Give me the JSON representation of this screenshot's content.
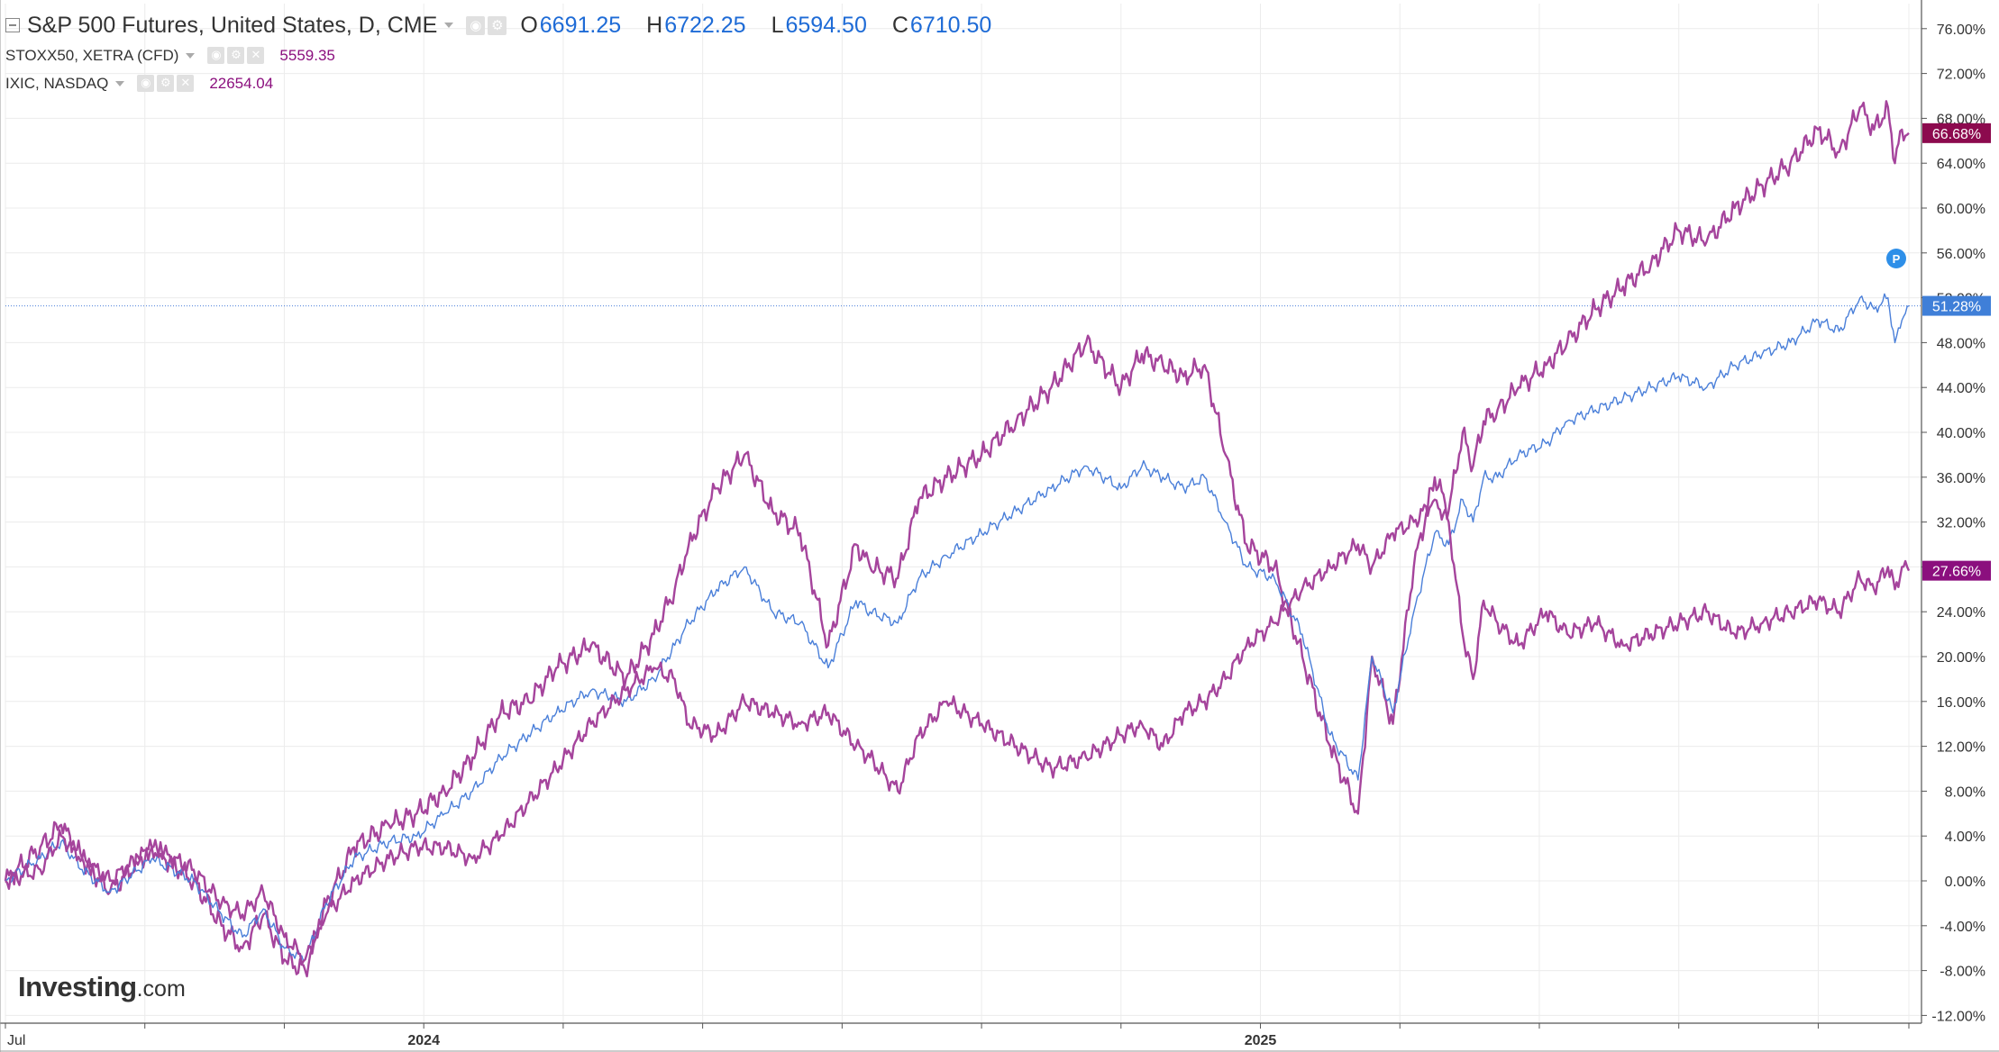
{
  "colors": {
    "background": "#ffffff",
    "grid": "#ececec",
    "axis": "#555555",
    "axis_text": "#333333",
    "blue": "#1e6bd6",
    "sp500_line": "#4a7fd9",
    "stoxx_line": "#a5449c",
    "ixic_line": "#a5449c",
    "ixic_label_bg": "#8c0a4e",
    "stoxx_label_bg": "#8b0f7e",
    "sp500_label_bg": "#3f7fd8",
    "p_marker": "#2e8fe8"
  },
  "legend": {
    "main": {
      "title": "S&P 500 Futures, United States, D, CME",
      "open_label": "O",
      "open": "6691.25",
      "high_label": "H",
      "high": "6722.25",
      "low_label": "L",
      "low": "6594.50",
      "close_label": "C",
      "close": "6710.50"
    },
    "series": [
      {
        "title": "STOXX50, XETRA (CFD)",
        "value": "5559.35",
        "value_color": "#8b0f7e"
      },
      {
        "title": "IXIC, NASDAQ",
        "value": "22654.04",
        "value_color": "#8b0f7e"
      }
    ]
  },
  "icons": {
    "collapse": "collapse-box-icon",
    "caret": "caret-down-icon",
    "visibility": "eye-icon",
    "settings": "gear-icon",
    "remove": "close-icon"
  },
  "logo": {
    "bold": "Investing",
    "suffix": ".com"
  },
  "marker": {
    "label": "P"
  },
  "chart_data": {
    "type": "line",
    "y_unit": "%",
    "ylim": [
      -12,
      78
    ],
    "y_ticks": [
      "76.00%",
      "72.00%",
      "68.00%",
      "64.00%",
      "60.00%",
      "56.00%",
      "52.00%",
      "48.00%",
      "44.00%",
      "40.00%",
      "36.00%",
      "32.00%",
      "28.00%",
      "24.00%",
      "20.00%",
      "16.00%",
      "12.00%",
      "8.00%",
      "4.00%",
      "0.00%",
      "-4.00%",
      "-8.00%",
      "-12.00%"
    ],
    "xlim": [
      0,
      27.3
    ],
    "x_tick_labels": [
      {
        "x": 0,
        "label": "Jul"
      },
      {
        "x": 6,
        "label": "2024"
      },
      {
        "x": 18,
        "label": "2025"
      }
    ],
    "x_minor_ticks": [
      2,
      4,
      8,
      10,
      12,
      14,
      16,
      20,
      22,
      24,
      26,
      27.3
    ],
    "grid": true,
    "price_line": 51.28,
    "last_value_labels": [
      {
        "series": "IXIC, NASDAQ",
        "label": "66.68%",
        "value": 66.68
      },
      {
        "series": "S&P 500 Futures",
        "label": "51.28%",
        "value": 51.28
      },
      {
        "series": "STOXX50, XETRA (CFD)",
        "label": "27.66%",
        "value": 27.66
      }
    ],
    "series": [
      {
        "name": "IXIC, NASDAQ",
        "x": [
          0,
          0.5,
          0.8,
          1.1,
          1.5,
          2.1,
          2.7,
          3.1,
          3.4,
          3.7,
          4.0,
          4.3,
          4.6,
          5.0,
          5.5,
          5.9,
          6.3,
          6.7,
          7.1,
          7.5,
          7.9,
          8.4,
          8.9,
          9.3,
          9.6,
          9.8,
          10.2,
          10.6,
          11.0,
          11.4,
          11.8,
          12.2,
          12.4,
          12.8,
          13.1,
          13.5,
          14.0,
          14.5,
          15.0,
          15.5,
          16.0,
          16.3,
          16.6,
          16.9,
          17.2,
          17.5,
          17.8,
          18.2,
          18.6,
          19.0,
          19.4,
          19.6,
          19.9,
          20.2,
          20.5,
          20.7,
          20.9,
          21.05,
          21.2,
          21.4,
          21.7,
          22.1,
          22.4,
          22.8,
          23.2,
          23.6,
          24.0,
          24.4,
          24.8,
          25.2,
          25.6,
          26.0,
          26.3,
          26.6,
          26.8,
          27.0,
          27.1,
          27.2,
          27.3
        ],
        "values": [
          0,
          3,
          5,
          2,
          -1,
          3,
          0,
          -4,
          -6,
          -3,
          -7,
          -8,
          -2,
          3,
          5,
          6,
          8,
          11,
          15,
          16,
          19,
          21,
          18,
          22,
          26,
          30,
          35,
          38,
          33,
          31,
          21,
          30,
          28,
          27,
          34,
          36,
          38,
          41,
          44,
          48,
          44,
          47,
          46,
          45,
          46,
          38,
          30,
          28,
          20,
          12,
          6,
          20,
          14,
          28,
          36,
          33,
          40,
          37,
          41,
          42,
          44,
          46,
          48,
          51,
          53,
          55,
          58,
          57,
          60,
          62,
          64,
          67,
          65,
          69,
          67,
          69,
          64,
          67,
          66.68
        ]
      },
      {
        "name": "S&P 500 Futures",
        "x": [
          0,
          0.5,
          0.8,
          1.1,
          1.5,
          2.1,
          2.7,
          3.1,
          3.4,
          3.7,
          4.0,
          4.3,
          4.6,
          5.0,
          5.5,
          5.9,
          6.3,
          6.7,
          7.1,
          7.5,
          7.9,
          8.4,
          8.9,
          9.3,
          9.6,
          9.8,
          10.2,
          10.6,
          11.0,
          11.4,
          11.8,
          12.2,
          12.4,
          12.8,
          13.1,
          13.5,
          14.0,
          14.5,
          15.0,
          15.5,
          16.0,
          16.3,
          16.6,
          16.9,
          17.2,
          17.5,
          17.8,
          18.2,
          18.6,
          19.0,
          19.4,
          19.6,
          19.9,
          20.2,
          20.5,
          20.7,
          20.9,
          21.05,
          21.2,
          21.4,
          21.7,
          22.1,
          22.4,
          22.8,
          23.2,
          23.6,
          24.0,
          24.4,
          24.8,
          25.2,
          25.6,
          26.0,
          26.3,
          26.6,
          26.8,
          27.0,
          27.1,
          27.2,
          27.3
        ],
        "values": [
          0,
          2,
          3.5,
          1,
          -1,
          2,
          0,
          -3,
          -5,
          -2.5,
          -6,
          -7,
          -2,
          2,
          3.5,
          4,
          6,
          8,
          11,
          13,
          15,
          17,
          16,
          18,
          21,
          23,
          26,
          28,
          24,
          23,
          19,
          25,
          24,
          23,
          27,
          29,
          31,
          33,
          35,
          37,
          35,
          37,
          36,
          35,
          36,
          32,
          28,
          27,
          22,
          13,
          9,
          20,
          15,
          24,
          31,
          30,
          34,
          32,
          36,
          36,
          38,
          39,
          41,
          42,
          43,
          44,
          45,
          44,
          46,
          47,
          48,
          50,
          49,
          52,
          51,
          52,
          48,
          50,
          51.28
        ]
      },
      {
        "name": "STOXX50, XETRA (CFD)",
        "x": [
          0,
          0.5,
          0.8,
          1.1,
          1.5,
          2.1,
          2.7,
          3.1,
          3.4,
          3.7,
          4.0,
          4.3,
          4.6,
          5.0,
          5.5,
          5.9,
          6.3,
          6.7,
          7.1,
          7.5,
          7.9,
          8.4,
          8.9,
          9.3,
          9.6,
          9.8,
          10.2,
          10.6,
          11.0,
          11.4,
          11.8,
          12.2,
          12.4,
          12.8,
          13.1,
          13.5,
          14.0,
          14.5,
          15.0,
          15.5,
          16.0,
          16.3,
          16.6,
          16.9,
          17.2,
          17.5,
          17.8,
          18.2,
          18.6,
          19.0,
          19.4,
          19.6,
          19.9,
          20.2,
          20.5,
          20.7,
          20.9,
          21.05,
          21.2,
          21.4,
          21.7,
          22.1,
          22.4,
          22.8,
          23.2,
          23.6,
          24.0,
          24.4,
          24.8,
          25.2,
          25.6,
          26.0,
          26.3,
          26.6,
          26.8,
          27.0,
          27.1,
          27.2,
          27.3
        ],
        "values": [
          0,
          1,
          4,
          2,
          0,
          3,
          1,
          -2,
          -3,
          -1,
          -5,
          -7,
          -3,
          0,
          2,
          3,
          3,
          2,
          4,
          7,
          10,
          14,
          17,
          19,
          18,
          14,
          13,
          16,
          15,
          14,
          15,
          12,
          11,
          8,
          13,
          16,
          14,
          12,
          10,
          11,
          13,
          14,
          12,
          15,
          16,
          18,
          21,
          23,
          26,
          28,
          30,
          28,
          31,
          32,
          34,
          32,
          22,
          18,
          25,
          23,
          21,
          24,
          22,
          23,
          21,
          22,
          23,
          24,
          22,
          23,
          24,
          25,
          24,
          27,
          26,
          28,
          26,
          28,
          27.66
        ]
      }
    ]
  }
}
